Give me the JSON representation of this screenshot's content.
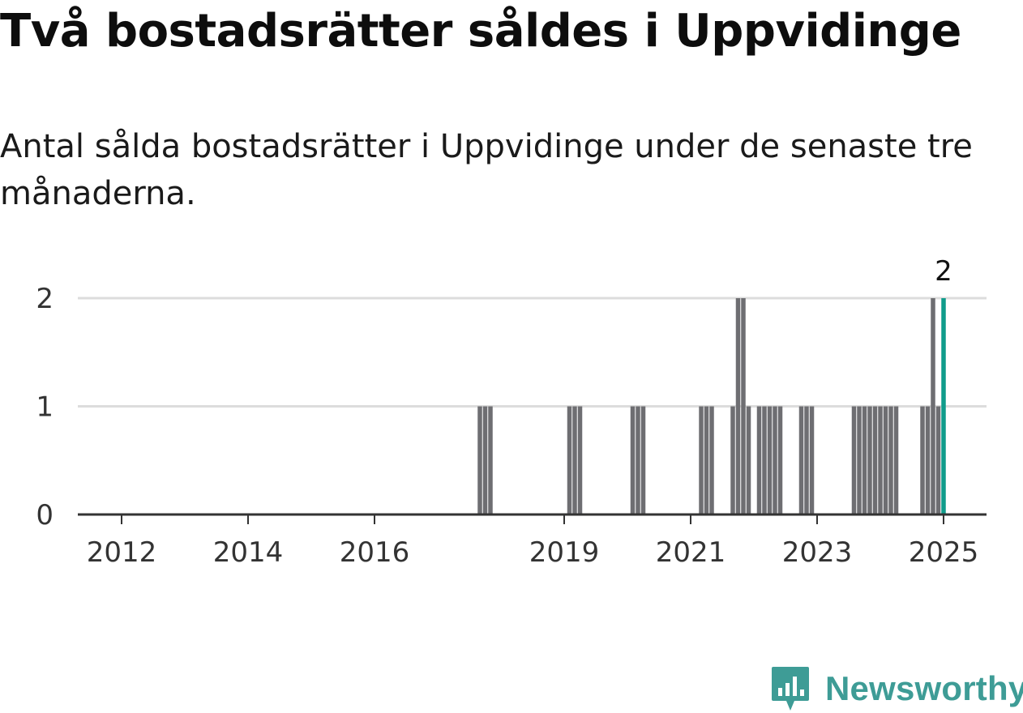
{
  "title": "Två bostadsrätter såldes i Uppvidinge",
  "subtitle": "Antal sålda bostadsrätter i Uppvidinge under de senaste tre månaderna.",
  "brand": {
    "name": "Newsworthy",
    "icon": "newsworthy-logo-icon",
    "color": "#3e9c96"
  },
  "chart_data": {
    "type": "bar",
    "x_unit": "month",
    "ylim": [
      0,
      2
    ],
    "y_ticks": [
      "0",
      "1",
      "2"
    ],
    "x_ticks": [
      "2012",
      "2014",
      "2016",
      "2019",
      "2021",
      "2023",
      "2025"
    ],
    "grid": true,
    "bar_color": "#6e6e72",
    "highlight_color": "#109c8b",
    "highlight_label": "2",
    "series": [
      {
        "values": [
          {
            "x": "2017-09",
            "y": 1
          },
          {
            "x": "2017-10",
            "y": 1
          },
          {
            "x": "2017-11",
            "y": 1
          },
          {
            "x": "2019-02",
            "y": 1
          },
          {
            "x": "2019-03",
            "y": 1
          },
          {
            "x": "2019-04",
            "y": 1
          },
          {
            "x": "2020-02",
            "y": 1
          },
          {
            "x": "2020-03",
            "y": 1
          },
          {
            "x": "2020-04",
            "y": 1
          },
          {
            "x": "2021-03",
            "y": 1
          },
          {
            "x": "2021-04",
            "y": 1
          },
          {
            "x": "2021-05",
            "y": 1
          },
          {
            "x": "2021-09",
            "y": 1
          },
          {
            "x": "2021-10",
            "y": 2
          },
          {
            "x": "2021-11",
            "y": 2
          },
          {
            "x": "2021-12",
            "y": 1
          },
          {
            "x": "2022-02",
            "y": 1
          },
          {
            "x": "2022-03",
            "y": 1
          },
          {
            "x": "2022-04",
            "y": 1
          },
          {
            "x": "2022-05",
            "y": 1
          },
          {
            "x": "2022-06",
            "y": 1
          },
          {
            "x": "2022-10",
            "y": 1
          },
          {
            "x": "2022-11",
            "y": 1
          },
          {
            "x": "2022-12",
            "y": 1
          },
          {
            "x": "2023-08",
            "y": 1
          },
          {
            "x": "2023-09",
            "y": 1
          },
          {
            "x": "2023-10",
            "y": 1
          },
          {
            "x": "2023-11",
            "y": 1
          },
          {
            "x": "2023-12",
            "y": 1
          },
          {
            "x": "2024-01",
            "y": 1
          },
          {
            "x": "2024-02",
            "y": 1
          },
          {
            "x": "2024-03",
            "y": 1
          },
          {
            "x": "2024-04",
            "y": 1
          },
          {
            "x": "2024-09",
            "y": 1
          },
          {
            "x": "2024-10",
            "y": 1
          },
          {
            "x": "2024-11",
            "y": 2
          },
          {
            "x": "2024-12",
            "y": 1
          },
          {
            "x": "2025-01",
            "y": 2,
            "highlight": true
          }
        ]
      }
    ]
  }
}
